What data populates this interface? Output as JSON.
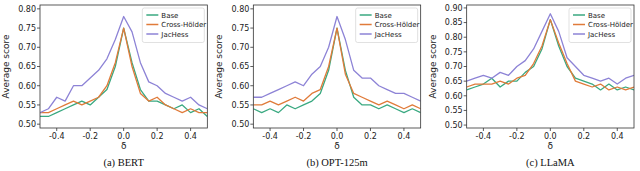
{
  "chart_data": [
    {
      "type": "line",
      "title": "(a) BERT",
      "x_label": "δ",
      "y_label": "Average score",
      "x": [
        -0.5,
        -0.45,
        -0.4,
        -0.35,
        -0.3,
        -0.25,
        -0.2,
        -0.15,
        -0.1,
        -0.05,
        0.0,
        0.05,
        0.1,
        0.15,
        0.2,
        0.25,
        0.3,
        0.35,
        0.4,
        0.45,
        0.5
      ],
      "xlim": [
        -0.5,
        0.5
      ],
      "xticks": [
        -0.4,
        -0.2,
        {
          "value": 0.0,
          "label": "0.0"
        },
        0.2,
        0.4
      ],
      "ylim": [
        0.49,
        0.81
      ],
      "yticks": [
        {
          "value": 0.5,
          "label": "0.50"
        },
        0.55,
        {
          "value": 0.6,
          "label": "0.60"
        },
        0.65,
        {
          "value": 0.7,
          "label": "0.70"
        },
        0.75,
        {
          "value": 0.8,
          "label": "0.80"
        }
      ],
      "grid": false,
      "legend": "upper right",
      "series": [
        {
          "name": "Base",
          "color": "#3aa981",
          "values": [
            0.52,
            0.52,
            0.53,
            0.54,
            0.55,
            0.56,
            0.55,
            0.57,
            0.59,
            0.65,
            0.75,
            0.66,
            0.59,
            0.56,
            0.56,
            0.55,
            0.54,
            0.55,
            0.53,
            0.54,
            0.52
          ]
        },
        {
          "name": "Cross-Hölder",
          "color": "#e07b3a",
          "values": [
            0.53,
            0.53,
            0.54,
            0.55,
            0.56,
            0.55,
            0.56,
            0.57,
            0.6,
            0.66,
            0.75,
            0.65,
            0.58,
            0.56,
            0.57,
            0.55,
            0.54,
            0.53,
            0.54,
            0.53,
            0.53
          ]
        },
        {
          "name": "JacHess",
          "color": "#8d83d6",
          "values": [
            0.53,
            0.54,
            0.57,
            0.56,
            0.6,
            0.6,
            0.62,
            0.64,
            0.67,
            0.72,
            0.78,
            0.74,
            0.66,
            0.61,
            0.6,
            0.58,
            0.57,
            0.56,
            0.57,
            0.55,
            0.54
          ]
        }
      ]
    },
    {
      "type": "line",
      "title": "(b) OPT-125m",
      "x_label": "δ",
      "y_label": "Average score",
      "x": [
        -0.5,
        -0.45,
        -0.4,
        -0.35,
        -0.3,
        -0.25,
        -0.2,
        -0.15,
        -0.1,
        -0.05,
        0.0,
        0.05,
        0.1,
        0.15,
        0.2,
        0.25,
        0.3,
        0.35,
        0.4,
        0.45,
        0.5
      ],
      "xlim": [
        -0.5,
        0.5
      ],
      "xticks": [
        -0.4,
        -0.2,
        {
          "value": 0.0,
          "label": "0.0"
        },
        0.2,
        0.4
      ],
      "ylim": [
        0.49,
        0.81
      ],
      "yticks": [
        {
          "value": 0.5,
          "label": "0.50"
        },
        0.55,
        {
          "value": 0.6,
          "label": "0.60"
        },
        0.65,
        {
          "value": 0.7,
          "label": "0.70"
        },
        0.75,
        {
          "value": 0.8,
          "label": "0.80"
        }
      ],
      "grid": false,
      "legend": "upper right",
      "series": [
        {
          "name": "Base",
          "color": "#3aa981",
          "values": [
            0.54,
            0.53,
            0.54,
            0.53,
            0.55,
            0.54,
            0.55,
            0.56,
            0.58,
            0.64,
            0.75,
            0.64,
            0.57,
            0.55,
            0.55,
            0.54,
            0.55,
            0.54,
            0.53,
            0.54,
            0.53
          ]
        },
        {
          "name": "Cross-Hölder",
          "color": "#e07b3a",
          "values": [
            0.55,
            0.55,
            0.56,
            0.55,
            0.56,
            0.57,
            0.56,
            0.58,
            0.59,
            0.65,
            0.75,
            0.63,
            0.58,
            0.57,
            0.56,
            0.55,
            0.56,
            0.55,
            0.54,
            0.55,
            0.54
          ]
        },
        {
          "name": "JacHess",
          "color": "#8d83d6",
          "values": [
            0.57,
            0.57,
            0.58,
            0.59,
            0.6,
            0.61,
            0.6,
            0.63,
            0.65,
            0.7,
            0.78,
            0.72,
            0.64,
            0.62,
            0.62,
            0.6,
            0.59,
            0.58,
            0.58,
            0.57,
            0.56
          ]
        }
      ]
    },
    {
      "type": "line",
      "title": "(c) LLaMA",
      "x_label": "δ",
      "y_label": "Average score",
      "x": [
        -0.5,
        -0.45,
        -0.4,
        -0.35,
        -0.3,
        -0.25,
        -0.2,
        -0.15,
        -0.1,
        -0.05,
        0.0,
        0.05,
        0.1,
        0.15,
        0.2,
        0.25,
        0.3,
        0.35,
        0.4,
        0.45,
        0.5
      ],
      "xlim": [
        -0.5,
        0.5
      ],
      "xticks": [
        -0.4,
        -0.2,
        {
          "value": 0.0,
          "label": "0.0"
        },
        0.2,
        0.4
      ],
      "ylim": [
        0.49,
        0.91
      ],
      "yticks": [
        {
          "value": 0.5,
          "label": "0.50"
        },
        0.55,
        {
          "value": 0.6,
          "label": "0.60"
        },
        0.65,
        {
          "value": 0.7,
          "label": "0.70"
        },
        0.75,
        {
          "value": 0.8,
          "label": "0.80"
        },
        0.85,
        {
          "value": 0.9,
          "label": "0.90"
        }
      ],
      "grid": false,
      "legend": "upper right",
      "series": [
        {
          "name": "Base",
          "color": "#3aa981",
          "values": [
            0.62,
            0.63,
            0.64,
            0.66,
            0.63,
            0.65,
            0.65,
            0.68,
            0.7,
            0.76,
            0.86,
            0.77,
            0.7,
            0.66,
            0.65,
            0.64,
            0.62,
            0.64,
            0.62,
            0.63,
            0.62
          ]
        },
        {
          "name": "Cross-Hölder",
          "color": "#e07b3a",
          "values": [
            0.63,
            0.64,
            0.64,
            0.64,
            0.65,
            0.64,
            0.66,
            0.67,
            0.71,
            0.77,
            0.86,
            0.78,
            0.71,
            0.65,
            0.64,
            0.63,
            0.64,
            0.62,
            0.63,
            0.62,
            0.63
          ]
        },
        {
          "name": "JacHess",
          "color": "#8d83d6",
          "values": [
            0.65,
            0.66,
            0.67,
            0.66,
            0.68,
            0.67,
            0.7,
            0.72,
            0.76,
            0.82,
            0.88,
            0.82,
            0.73,
            0.7,
            0.67,
            0.66,
            0.65,
            0.66,
            0.64,
            0.66,
            0.67
          ]
        }
      ]
    }
  ]
}
